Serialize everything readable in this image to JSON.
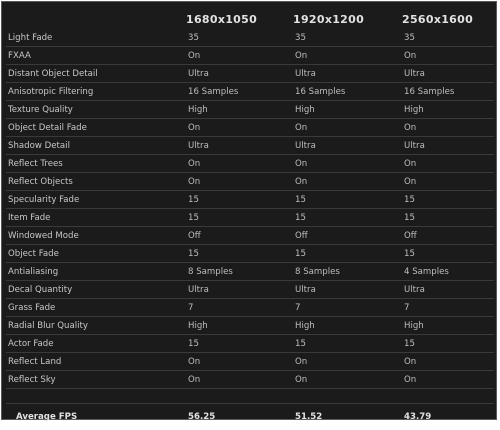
{
  "columns": [
    "",
    "1680x1050",
    "1920x1200",
    "2560x1600"
  ],
  "rows": [
    {
      "name": "Light Fade",
      "values": [
        "35",
        "35",
        "35"
      ]
    },
    {
      "name": "FXAA",
      "values": [
        "On",
        "On",
        "On"
      ]
    },
    {
      "name": "Distant Object Detail",
      "values": [
        "Ultra",
        "Ultra",
        "Ultra"
      ]
    },
    {
      "name": "Anisotropic Filtering",
      "values": [
        "16 Samples",
        "16 Samples",
        "16 Samples"
      ]
    },
    {
      "name": "Texture Quality",
      "values": [
        "High",
        "High",
        "High"
      ]
    },
    {
      "name": "Object Detail Fade",
      "values": [
        "On",
        "On",
        "On"
      ]
    },
    {
      "name": "Shadow Detail",
      "values": [
        "Ultra",
        "Ultra",
        "Ultra"
      ]
    },
    {
      "name": "Reflect Trees",
      "values": [
        "On",
        "On",
        "On"
      ]
    },
    {
      "name": "Reflect Objects",
      "values": [
        "On",
        "On",
        "On"
      ]
    },
    {
      "name": "Specularity Fade",
      "values": [
        "15",
        "15",
        "15"
      ]
    },
    {
      "name": "Item Fade",
      "values": [
        "15",
        "15",
        "15"
      ]
    },
    {
      "name": "Windowed Mode",
      "values": [
        "Off",
        "Off",
        "Off"
      ]
    },
    {
      "name": "Object Fade",
      "values": [
        "15",
        "15",
        "15"
      ]
    },
    {
      "name": "Antialiasing",
      "values": [
        "8 Samples",
        "8 Samples",
        "4 Samples"
      ]
    },
    {
      "name": "Decal Quantity",
      "values": [
        "Ultra",
        "Ultra",
        "Ultra"
      ]
    },
    {
      "name": "Grass Fade",
      "values": [
        "7",
        "7",
        "7"
      ]
    },
    {
      "name": "Radial Blur Quality",
      "values": [
        "High",
        "High",
        "High"
      ]
    },
    {
      "name": "Actor Fade",
      "values": [
        "15",
        "15",
        "15"
      ]
    },
    {
      "name": "Reflect Land",
      "values": [
        "On",
        "On",
        "On"
      ]
    },
    {
      "name": "Reflect Sky",
      "values": [
        "On",
        "On",
        "On"
      ]
    }
  ],
  "average_fps": {
    "label": "Average FPS",
    "values": [
      "56.25",
      "51.52",
      "43.79"
    ]
  }
}
